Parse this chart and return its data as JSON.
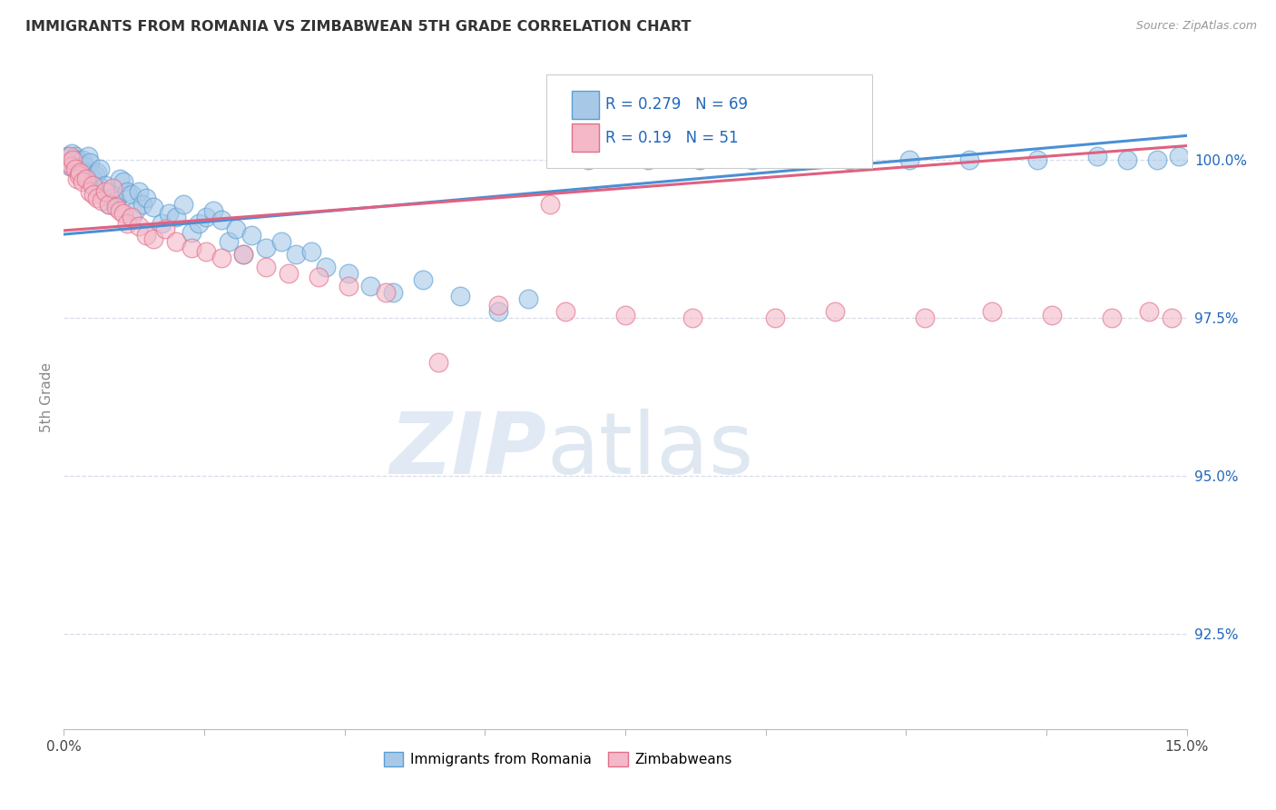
{
  "title": "IMMIGRANTS FROM ROMANIA VS ZIMBABWEAN 5TH GRADE CORRELATION CHART",
  "source": "Source: ZipAtlas.com",
  "ylabel": "5th Grade",
  "yticks": [
    92.5,
    95.0,
    97.5,
    100.0
  ],
  "ytick_labels": [
    "92.5%",
    "95.0%",
    "97.5%",
    "100.0%"
  ],
  "xlim": [
    0.0,
    15.0
  ],
  "ylim": [
    91.0,
    101.5
  ],
  "romania_R": 0.279,
  "romania_N": 69,
  "zimbabwe_R": 0.19,
  "zimbabwe_N": 51,
  "blue_fill": "#a8c8e8",
  "blue_edge": "#5a9fd4",
  "pink_fill": "#f4b8c8",
  "pink_edge": "#e0708a",
  "blue_line": "#4a90d4",
  "pink_line": "#e06080",
  "legend_color": "#2266bb",
  "grid_color": "#d8dde8",
  "watermark_zip_color": "#c8d8ec",
  "watermark_atlas_color": "#b8cce0",
  "romania_x": [
    0.05,
    0.08,
    0.1,
    0.12,
    0.15,
    0.18,
    0.2,
    0.22,
    0.25,
    0.28,
    0.3,
    0.32,
    0.35,
    0.38,
    0.4,
    0.42,
    0.45,
    0.48,
    0.5,
    0.55,
    0.6,
    0.65,
    0.7,
    0.75,
    0.8,
    0.85,
    0.9,
    0.95,
    1.0,
    1.05,
    1.1,
    1.2,
    1.3,
    1.4,
    1.5,
    1.6,
    1.7,
    1.8,
    1.9,
    2.0,
    2.1,
    2.2,
    2.3,
    2.4,
    2.5,
    2.7,
    2.9,
    3.1,
    3.3,
    3.5,
    3.8,
    4.1,
    4.4,
    4.8,
    5.3,
    5.8,
    6.2,
    7.0,
    7.8,
    8.5,
    9.2,
    10.5,
    11.3,
    12.1,
    13.0,
    13.8,
    14.2,
    14.6,
    14.9
  ],
  "romania_y": [
    100.05,
    99.9,
    100.1,
    99.95,
    100.05,
    100.0,
    99.85,
    99.95,
    100.0,
    99.9,
    99.8,
    100.05,
    99.95,
    99.7,
    99.6,
    99.75,
    99.8,
    99.85,
    99.55,
    99.6,
    99.3,
    99.4,
    99.35,
    99.7,
    99.65,
    99.5,
    99.45,
    99.2,
    99.5,
    99.3,
    99.4,
    99.25,
    99.0,
    99.15,
    99.1,
    99.3,
    98.85,
    99.0,
    99.1,
    99.2,
    99.05,
    98.7,
    98.9,
    98.5,
    98.8,
    98.6,
    98.7,
    98.5,
    98.55,
    98.3,
    98.2,
    98.0,
    97.9,
    98.1,
    97.85,
    97.6,
    97.8,
    100.0,
    100.0,
    100.0,
    100.0,
    100.0,
    100.0,
    100.0,
    100.0,
    100.05,
    100.0,
    100.0,
    100.05
  ],
  "zimbabwe_x": [
    0.05,
    0.08,
    0.1,
    0.12,
    0.15,
    0.18,
    0.2,
    0.22,
    0.25,
    0.3,
    0.35,
    0.38,
    0.4,
    0.45,
    0.5,
    0.55,
    0.6,
    0.65,
    0.7,
    0.75,
    0.8,
    0.85,
    0.9,
    1.0,
    1.1,
    1.2,
    1.35,
    1.5,
    1.7,
    1.9,
    2.1,
    2.4,
    2.7,
    3.0,
    3.4,
    3.8,
    4.3,
    5.0,
    5.8,
    6.7,
    7.5,
    8.4,
    9.5,
    10.3,
    11.5,
    12.4,
    13.2,
    14.0,
    14.5,
    14.8,
    6.5
  ],
  "zimbabwe_y": [
    99.95,
    100.05,
    99.9,
    100.0,
    99.85,
    99.7,
    99.75,
    99.8,
    99.65,
    99.7,
    99.5,
    99.6,
    99.45,
    99.4,
    99.35,
    99.5,
    99.3,
    99.55,
    99.25,
    99.2,
    99.15,
    99.0,
    99.1,
    98.95,
    98.8,
    98.75,
    98.9,
    98.7,
    98.6,
    98.55,
    98.45,
    98.5,
    98.3,
    98.2,
    98.15,
    98.0,
    97.9,
    96.8,
    97.7,
    97.6,
    97.55,
    97.5,
    97.5,
    97.6,
    97.5,
    97.6,
    97.55,
    97.5,
    97.6,
    97.5,
    99.3
  ],
  "romania_line_x": [
    0.0,
    15.0
  ],
  "romania_line_y": [
    98.82,
    100.38
  ],
  "zimbabwe_line_x": [
    0.0,
    15.0
  ],
  "zimbabwe_line_y": [
    98.88,
    100.22
  ],
  "xtick_positions": [
    0.0,
    1.875,
    3.75,
    5.625,
    7.5,
    9.375,
    11.25,
    13.125,
    15.0
  ],
  "bottom_legend_labels": [
    "Immigrants from Romania",
    "Zimbabweans"
  ]
}
